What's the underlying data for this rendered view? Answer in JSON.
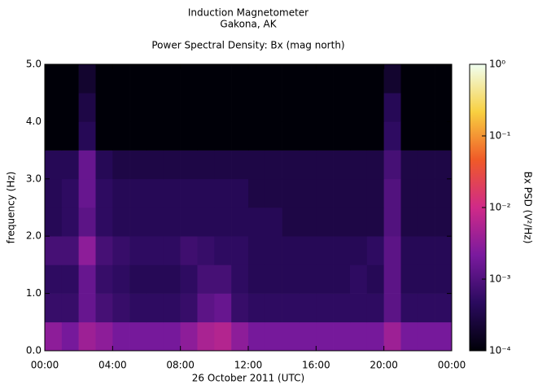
{
  "chart_data": {
    "type": "heatmap",
    "title": "Induction Magnetometer",
    "subtitle": "Gakona, AK",
    "plot_title": "Power Spectral Density: Bx (mag north)",
    "x_label": "26 October 2011 (UTC)",
    "y_label": "frequency (Hz)",
    "colorbar_label": "Bx PSD (V²/Hz)",
    "xlim": [
      0,
      24
    ],
    "xticks": [
      {
        "value": 0,
        "label": "00:00"
      },
      {
        "value": 4,
        "label": "04:00"
      },
      {
        "value": 8,
        "label": "08:00"
      },
      {
        "value": 12,
        "label": "12:00"
      },
      {
        "value": 16,
        "label": "16:00"
      },
      {
        "value": 20,
        "label": "20:00"
      },
      {
        "value": 24,
        "label": "00:00"
      }
    ],
    "ylim": [
      0,
      5
    ],
    "yticks": [
      {
        "value": 0,
        "label": "0.0"
      },
      {
        "value": 1,
        "label": "1.0"
      },
      {
        "value": 2,
        "label": "2.0"
      },
      {
        "value": 3,
        "label": "3.0"
      },
      {
        "value": 4,
        "label": "4.0"
      },
      {
        "value": 5,
        "label": "5.0"
      }
    ],
    "zlim": [
      0.0001,
      1
    ],
    "zscale": "log",
    "zticks": [
      {
        "value": 0.0001,
        "label": "10⁻⁴"
      },
      {
        "value": 0.001,
        "label": "10⁻³"
      },
      {
        "value": 0.01,
        "label": "10⁻²"
      },
      {
        "value": 0.1,
        "label": "10⁻¹"
      },
      {
        "value": 1,
        "label": "10⁰"
      }
    ],
    "colorscale": [
      "#000008",
      "#2a0a5e",
      "#7a1a9e",
      "#d02a88",
      "#f05a28",
      "#f8d040",
      "#f0fff0"
    ],
    "xbins": [
      0,
      1,
      2,
      3,
      4,
      5,
      6,
      7,
      8,
      9,
      10,
      11,
      12,
      13,
      14,
      15,
      16,
      17,
      18,
      19,
      20,
      21,
      22,
      23,
      24
    ],
    "ybins": [
      0,
      0.5,
      1,
      1.5,
      2,
      2.5,
      3,
      3.5,
      4,
      4.5,
      5
    ],
    "z": [
      [
        0.003,
        0.002,
        0.004,
        0.003,
        0.002,
        0.002,
        0.002,
        0.002,
        0.003,
        0.005,
        0.006,
        0.003,
        0.002,
        0.002,
        0.002,
        0.002,
        0.002,
        0.002,
        0.002,
        0.002,
        0.004,
        0.002,
        0.002,
        0.002
      ],
      [
        0.0006,
        0.0006,
        0.0015,
        0.0008,
        0.0006,
        0.0005,
        0.0005,
        0.0005,
        0.0006,
        0.0012,
        0.0015,
        0.0006,
        0.0005,
        0.0005,
        0.0005,
        0.0005,
        0.0005,
        0.0005,
        0.0005,
        0.0005,
        0.0012,
        0.0005,
        0.0005,
        0.0005
      ],
      [
        0.0005,
        0.0005,
        0.0015,
        0.0006,
        0.0005,
        0.0004,
        0.0004,
        0.0004,
        0.0005,
        0.0008,
        0.0008,
        0.0005,
        0.0004,
        0.0004,
        0.0004,
        0.0004,
        0.0004,
        0.0004,
        0.0005,
        0.0004,
        0.0012,
        0.0004,
        0.0004,
        0.0004
      ],
      [
        0.0008,
        0.0008,
        0.003,
        0.0008,
        0.0006,
        0.0005,
        0.0005,
        0.0005,
        0.0007,
        0.0006,
        0.0005,
        0.0005,
        0.0004,
        0.0004,
        0.0004,
        0.0004,
        0.0004,
        0.0004,
        0.0004,
        0.0005,
        0.0012,
        0.0004,
        0.0004,
        0.0004
      ],
      [
        0.0004,
        0.0005,
        0.0012,
        0.0005,
        0.0004,
        0.0004,
        0.0004,
        0.0004,
        0.0004,
        0.0004,
        0.0004,
        0.0004,
        0.0004,
        0.0004,
        0.0003,
        0.0003,
        0.0003,
        0.0003,
        0.0003,
        0.0003,
        0.001,
        0.0003,
        0.0003,
        0.0003
      ],
      [
        0.0004,
        0.0005,
        0.0015,
        0.0005,
        0.0004,
        0.0004,
        0.0004,
        0.0004,
        0.0004,
        0.0004,
        0.0004,
        0.0004,
        0.0003,
        0.0003,
        0.0003,
        0.0003,
        0.0003,
        0.0003,
        0.0003,
        0.0003,
        0.001,
        0.0003,
        0.0003,
        0.0003
      ],
      [
        0.0004,
        0.0004,
        0.0015,
        0.0004,
        0.0003,
        0.0003,
        0.0003,
        0.0003,
        0.0003,
        0.0003,
        0.0003,
        0.0003,
        0.0003,
        0.0003,
        0.0003,
        0.0003,
        0.0003,
        0.0003,
        0.0003,
        0.0003,
        0.0008,
        0.0003,
        0.0003,
        0.0003
      ],
      [
        0.0001,
        0.0001,
        0.0004,
        0.0001,
        0.0001,
        0.0001,
        0.0001,
        0.0001,
        0.0001,
        0.0001,
        0.0001,
        0.0001,
        0.0001,
        0.0001,
        0.0001,
        0.0001,
        0.0001,
        0.0001,
        0.0001,
        0.0001,
        0.0005,
        0.0001,
        0.0001,
        0.0001
      ],
      [
        0.0001,
        0.0001,
        0.0003,
        0.0001,
        0.0001,
        0.0001,
        0.0001,
        0.0001,
        0.0001,
        0.0001,
        0.0001,
        0.0001,
        0.0001,
        0.0001,
        0.0001,
        0.0001,
        0.0001,
        0.0001,
        0.0001,
        0.0001,
        0.0004,
        0.0001,
        0.0001,
        0.0001
      ],
      [
        0.0001,
        0.0001,
        0.0002,
        0.0001,
        0.0001,
        0.0001,
        0.0001,
        0.0001,
        0.0001,
        0.0001,
        0.0001,
        0.0001,
        0.0001,
        0.0001,
        0.0001,
        0.0001,
        0.0001,
        0.0001,
        0.0001,
        0.0001,
        0.0002,
        0.0001,
        0.0001,
        0.0001
      ]
    ]
  }
}
